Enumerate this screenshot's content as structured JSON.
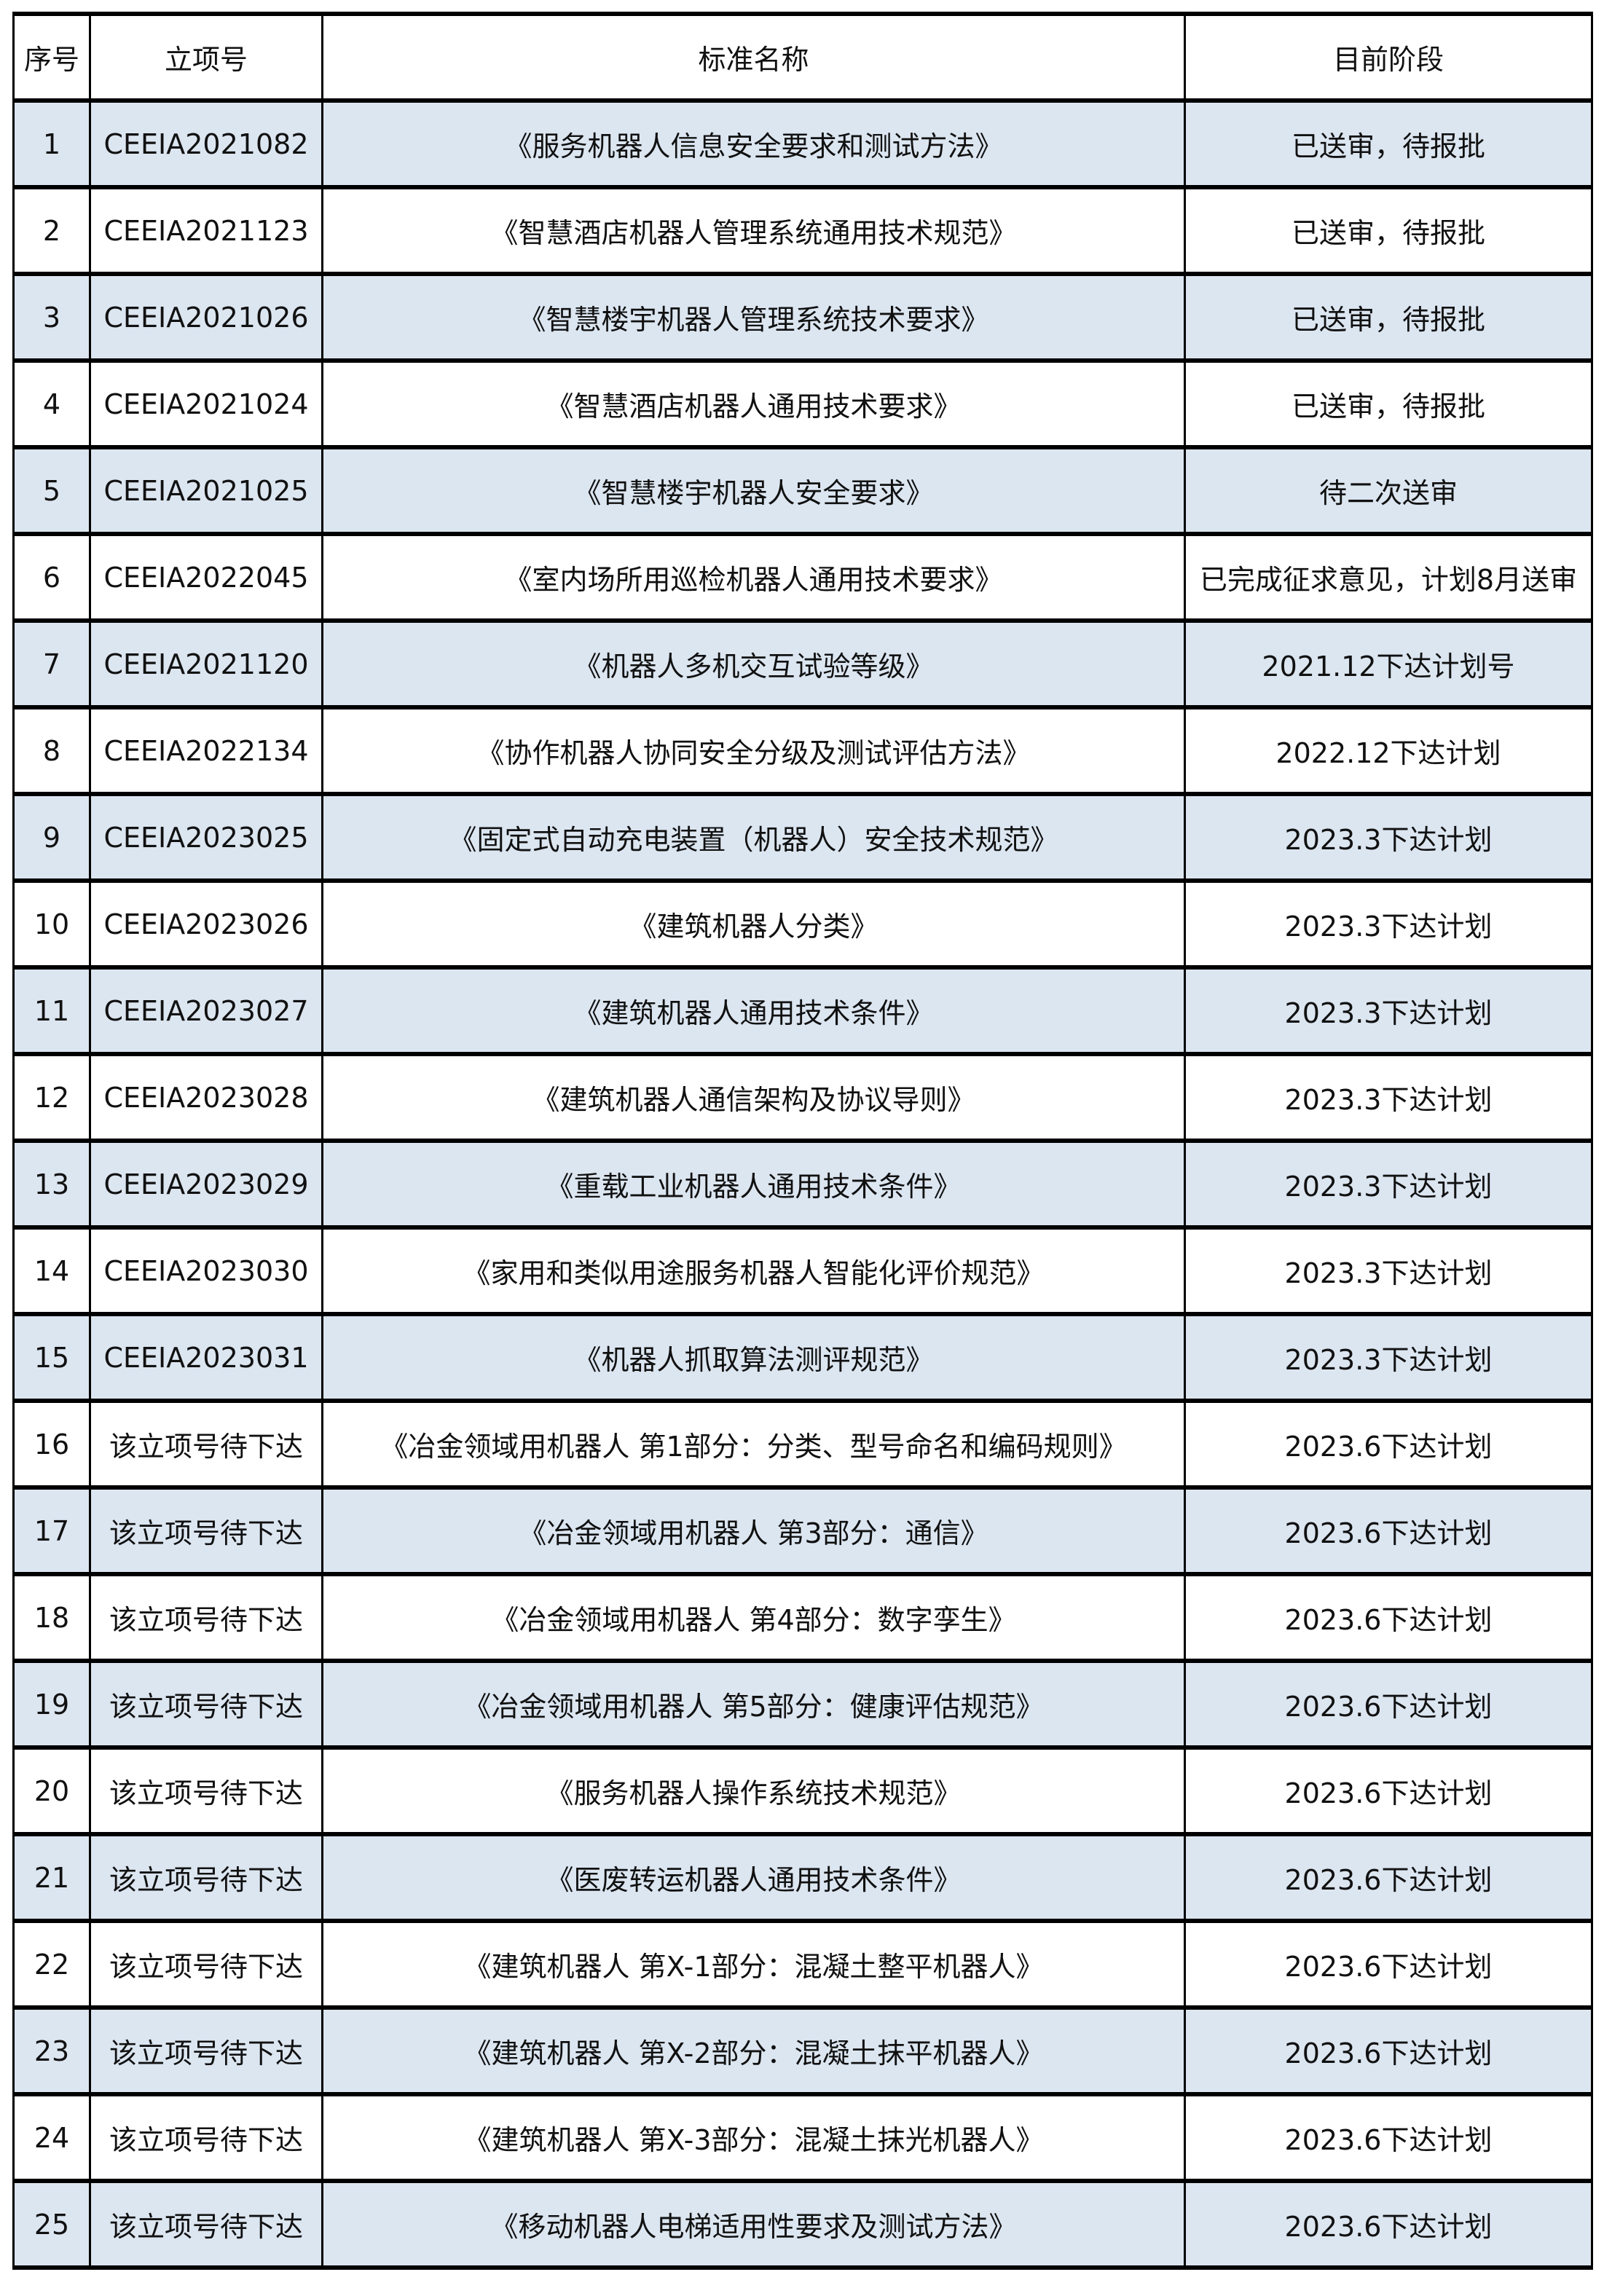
{
  "table": {
    "headers": [
      "序号",
      "立项号",
      "标准名称",
      "目前阶段"
    ],
    "rows": [
      [
        "1",
        "CEEIA2021082",
        "《服务机器人信息安全要求和测试方法》",
        "已送审，待报批"
      ],
      [
        "2",
        "CEEIA2021123",
        "《智慧酒店机器人管理系统通用技术规范》",
        "已送审，待报批"
      ],
      [
        "3",
        "CEEIA2021026",
        "《智慧楼宇机器人管理系统技术要求》",
        "已送审，待报批"
      ],
      [
        "4",
        "CEEIA2021024",
        "《智慧酒店机器人通用技术要求》",
        "已送审，待报批"
      ],
      [
        "5",
        "CEEIA2021025",
        "《智慧楼宇机器人安全要求》",
        "待二次送审"
      ],
      [
        "6",
        "CEEIA2022045",
        "《室内场所用巡检机器人通用技术要求》",
        "已完成征求意见，计划8月送审"
      ],
      [
        "7",
        "CEEIA2021120",
        "《机器人多机交互试验等级》",
        "2021.12下达计划号"
      ],
      [
        "8",
        "CEEIA2022134",
        "《协作机器人协同安全分级及测试评估方法》",
        "2022.12下达计划"
      ],
      [
        "9",
        "CEEIA2023025",
        "《固定式自动充电装置（机器人）安全技术规范》",
        "2023.3下达计划"
      ],
      [
        "10",
        "CEEIA2023026",
        "《建筑机器人分类》",
        "2023.3下达计划"
      ],
      [
        "11",
        "CEEIA2023027",
        "《建筑机器人通用技术条件》",
        "2023.3下达计划"
      ],
      [
        "12",
        "CEEIA2023028",
        "《建筑机器人通信架构及协议导则》",
        "2023.3下达计划"
      ],
      [
        "13",
        "CEEIA2023029",
        "《重载工业机器人通用技术条件》",
        "2023.3下达计划"
      ],
      [
        "14",
        "CEEIA2023030",
        "《家用和类似用途服务机器人智能化评价规范》",
        "2023.3下达计划"
      ],
      [
        "15",
        "CEEIA2023031",
        "《机器人抓取算法测评规范》",
        "2023.3下达计划"
      ],
      [
        "16",
        "该立项号待下达",
        "《冶金领域用机器人  第1部分：分类、型号命名和编码规则》",
        "2023.6下达计划"
      ],
      [
        "17",
        "该立项号待下达",
        "《冶金领域用机器人  第3部分：通信》",
        "2023.6下达计划"
      ],
      [
        "18",
        "该立项号待下达",
        "《冶金领域用机器人  第4部分：数字孪生》",
        "2023.6下达计划"
      ],
      [
        "19",
        "该立项号待下达",
        "《冶金领域用机器人 第5部分：健康评估规范》",
        "2023.6下达计划"
      ],
      [
        "20",
        "该立项号待下达",
        "《服务机器人操作系统技术规范》",
        "2023.6下达计划"
      ],
      [
        "21",
        "该立项号待下达",
        "《医废转运机器人通用技术条件》",
        "2023.6下达计划"
      ],
      [
        "22",
        "该立项号待下达",
        "《建筑机器人 第X-1部分：混凝土整平机器人》",
        "2023.6下达计划"
      ],
      [
        "23",
        "该立项号待下达",
        "《建筑机器人  第X-2部分：混凝土抹平机器人》",
        "2023.6下达计划"
      ],
      [
        "24",
        "该立项号待下达",
        "《建筑机器人 第X-3部分：混凝土抹光机器人》",
        "2023.6下达计划"
      ],
      [
        "25",
        "该立项号待下达",
        "《移动机器人电梯适用性要求及测试方法》",
        "2023.6下达计划"
      ]
    ]
  },
  "colors": {
    "row_alt": "#dce6f1",
    "border": "#000000"
  }
}
